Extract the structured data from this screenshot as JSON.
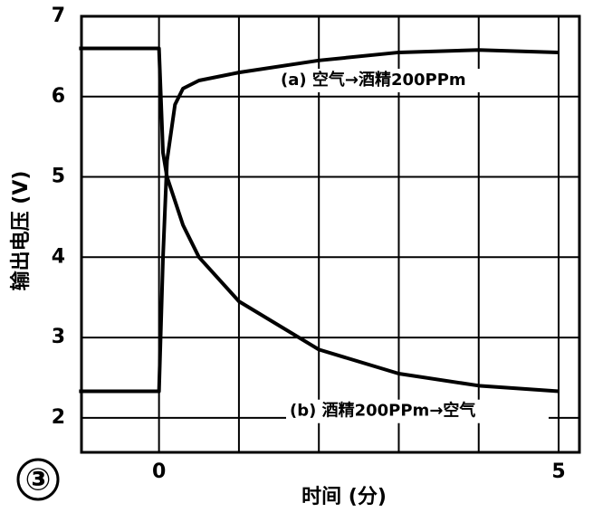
{
  "chart_data": {
    "type": "line",
    "ylabel": "输出电压 (V)",
    "xlabel": "时间 (分)",
    "panel_label": "③",
    "x": [
      -1,
      0,
      0.05,
      0.1,
      0.2,
      0.3,
      0.5,
      1,
      2,
      3,
      4,
      5
    ],
    "series": [
      {
        "name": "(a) 空气→酒精200PPm",
        "color": "#000000",
        "values": [
          2.33,
          2.33,
          4.0,
          5.2,
          5.9,
          6.1,
          6.2,
          6.3,
          6.45,
          6.55,
          6.58,
          6.55
        ]
      },
      {
        "name": "(b) 酒精200PPm→空气",
        "color": "#000000",
        "values": [
          6.6,
          6.6,
          5.3,
          5.0,
          4.7,
          4.4,
          4.0,
          3.45,
          2.85,
          2.55,
          2.4,
          2.33
        ]
      }
    ],
    "xlim": [
      -0.97,
      5.26
    ],
    "ylim": [
      1.57,
      7
    ],
    "xticks": [
      0,
      5
    ],
    "xgrid": [
      1,
      2,
      3,
      4
    ],
    "yticks": [
      2,
      3,
      4,
      5,
      6,
      7
    ],
    "grid": true
  }
}
